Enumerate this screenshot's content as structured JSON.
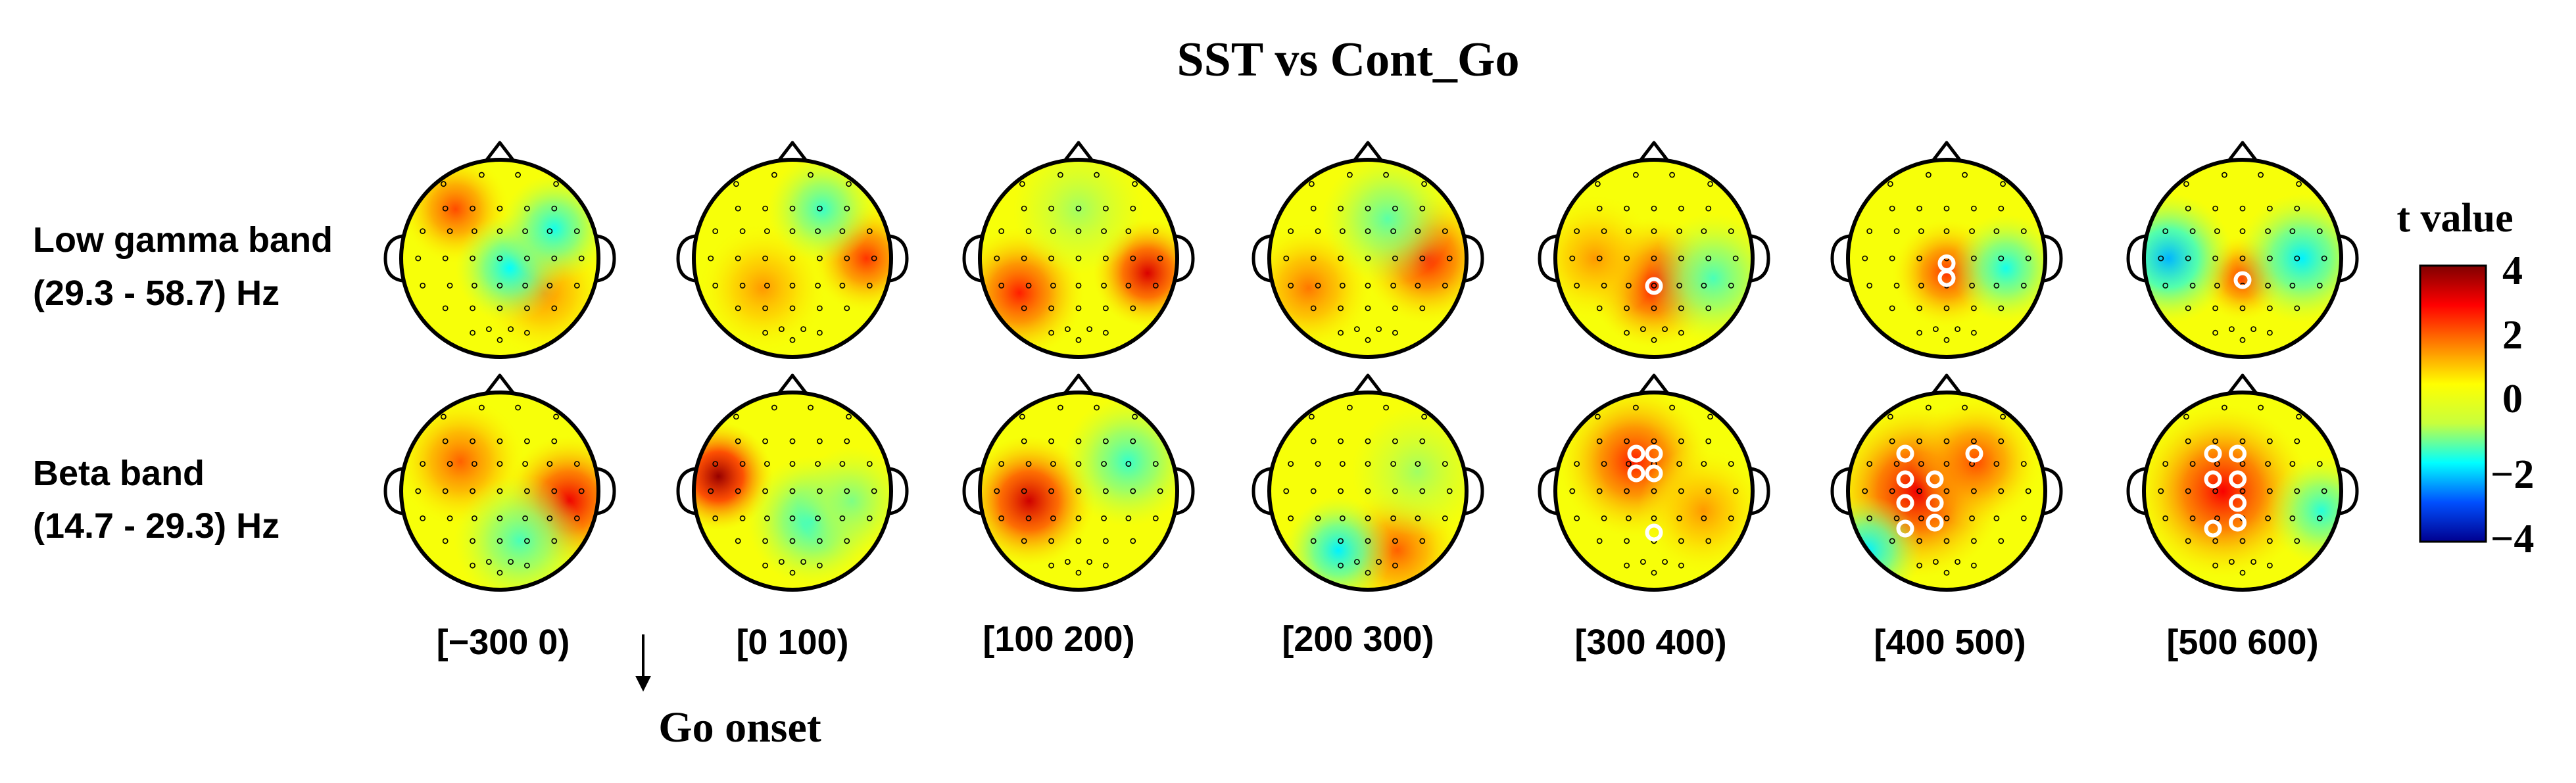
{
  "chart_data": {
    "type": "heatmap",
    "subtype": "eeg-topography",
    "title": "SST vs Cont_Go",
    "rows": [
      {
        "label_line1": "Low gamma band",
        "label_line2": "(29.3 - 58.7) Hz"
      },
      {
        "label_line1": "Beta band",
        "label_line2": "(14.7 - 29.3) Hz"
      }
    ],
    "time_windows": [
      "[−300 0)",
      "[0 100)",
      "[100 200)",
      "[200 300)",
      "[300 400)",
      "[400 500)",
      "[500 600)"
    ],
    "onset_annotation": "Go onset",
    "colorbar": {
      "title": "t value",
      "range": [
        -4,
        4
      ],
      "ticks": [
        "4",
        "2",
        "0",
        "−2",
        "−4"
      ],
      "colormap": [
        "#00008f",
        "#0050ff",
        "#00ffff",
        "#c8ff3c",
        "#ffff00",
        "#ff8000",
        "#ff0000",
        "#800000"
      ]
    },
    "maps": [
      [
        {
          "blobs": [
            [
              -0.45,
              -0.5,
              0.25,
              2.2
            ],
            [
              0.45,
              0.35,
              0.3,
              1.6
            ],
            [
              0.1,
              0.1,
              0.25,
              -1.7
            ],
            [
              0.55,
              -0.3,
              0.25,
              -1.6
            ]
          ],
          "sig": []
        },
        {
          "blobs": [
            [
              0.75,
              0.0,
              0.25,
              2.4
            ],
            [
              -0.3,
              0.3,
              0.3,
              1.5
            ],
            [
              0.3,
              -0.5,
              0.25,
              -1.4
            ]
          ],
          "sig": []
        },
        {
          "blobs": [
            [
              -0.6,
              0.35,
              0.3,
              2.6
            ],
            [
              0.7,
              0.15,
              0.25,
              3.2
            ],
            [
              0.0,
              -0.5,
              0.3,
              -0.8
            ]
          ],
          "sig": []
        },
        {
          "blobs": [
            [
              0.6,
              0.0,
              0.3,
              2.6
            ],
            [
              -0.6,
              0.3,
              0.3,
              1.8
            ],
            [
              0.2,
              -0.4,
              0.3,
              -1.2
            ]
          ],
          "sig": []
        },
        {
          "blobs": [
            [
              0.0,
              0.25,
              0.3,
              2.8
            ],
            [
              0.6,
              0.2,
              0.3,
              -1.3
            ],
            [
              -0.6,
              0.0,
              0.3,
              1.5
            ]
          ],
          "sig": [
            [
              0.0,
              0.28
            ]
          ]
        },
        {
          "blobs": [
            [
              0.0,
              0.15,
              0.25,
              2.4
            ],
            [
              0.6,
              0.1,
              0.25,
              -1.6
            ]
          ],
          "sig": [
            [
              0.0,
              0.05
            ],
            [
              0.0,
              0.2
            ]
          ]
        },
        {
          "blobs": [
            [
              0.0,
              0.2,
              0.2,
              2.3
            ],
            [
              -0.75,
              0.0,
              0.3,
              -2.2
            ],
            [
              0.6,
              0.0,
              0.3,
              -1.8
            ]
          ],
          "sig": [
            [
              0.0,
              0.22
            ]
          ]
        }
      ],
      [
        {
          "blobs": [
            [
              0.7,
              0.1,
              0.3,
              3.0
            ],
            [
              -0.4,
              -0.3,
              0.3,
              2.0
            ],
            [
              0.2,
              0.5,
              0.3,
              -1.3
            ]
          ],
          "sig": []
        },
        {
          "blobs": [
            [
              -0.75,
              -0.15,
              0.25,
              3.8
            ],
            [
              0.2,
              0.3,
              0.3,
              -1.5
            ],
            [
              0.6,
              0.1,
              0.25,
              -1.0
            ]
          ],
          "sig": []
        },
        {
          "blobs": [
            [
              -0.5,
              0.1,
              0.3,
              3.3
            ],
            [
              0.5,
              -0.3,
              0.3,
              -1.4
            ]
          ],
          "sig": []
        },
        {
          "blobs": [
            [
              0.3,
              0.6,
              0.3,
              2.0
            ],
            [
              -0.3,
              0.6,
              0.25,
              -1.8
            ],
            [
              0.5,
              -0.2,
              0.3,
              -0.8
            ]
          ],
          "sig": []
        },
        {
          "blobs": [
            [
              -0.2,
              -0.3,
              0.35,
              2.6
            ],
            [
              0.5,
              0.2,
              0.3,
              1.5
            ]
          ],
          "sig": [
            [
              -0.18,
              -0.38
            ],
            [
              0.0,
              -0.38
            ],
            [
              -0.18,
              -0.18
            ],
            [
              0.0,
              -0.18
            ],
            [
              0.0,
              0.42
            ]
          ]
        },
        {
          "blobs": [
            [
              -0.3,
              0.0,
              0.4,
              3.0
            ],
            [
              0.3,
              -0.3,
              0.3,
              2.2
            ],
            [
              -0.8,
              0.6,
              0.25,
              -1.8
            ]
          ],
          "sig": [
            [
              -0.42,
              -0.38
            ],
            [
              0.28,
              -0.38
            ],
            [
              -0.42,
              -0.12
            ],
            [
              -0.12,
              -0.12
            ],
            [
              -0.42,
              0.12
            ],
            [
              -0.12,
              0.12
            ],
            [
              -0.42,
              0.38
            ],
            [
              -0.12,
              0.32
            ]
          ]
        },
        {
          "blobs": [
            [
              -0.2,
              0.0,
              0.4,
              2.9
            ],
            [
              0.8,
              0.2,
              0.25,
              -1.5
            ]
          ],
          "sig": [
            [
              -0.3,
              -0.38
            ],
            [
              -0.05,
              -0.38
            ],
            [
              -0.3,
              -0.12
            ],
            [
              -0.05,
              -0.12
            ],
            [
              -0.05,
              0.12
            ],
            [
              -0.3,
              0.38
            ],
            [
              -0.05,
              0.32
            ]
          ]
        }
      ]
    ]
  }
}
